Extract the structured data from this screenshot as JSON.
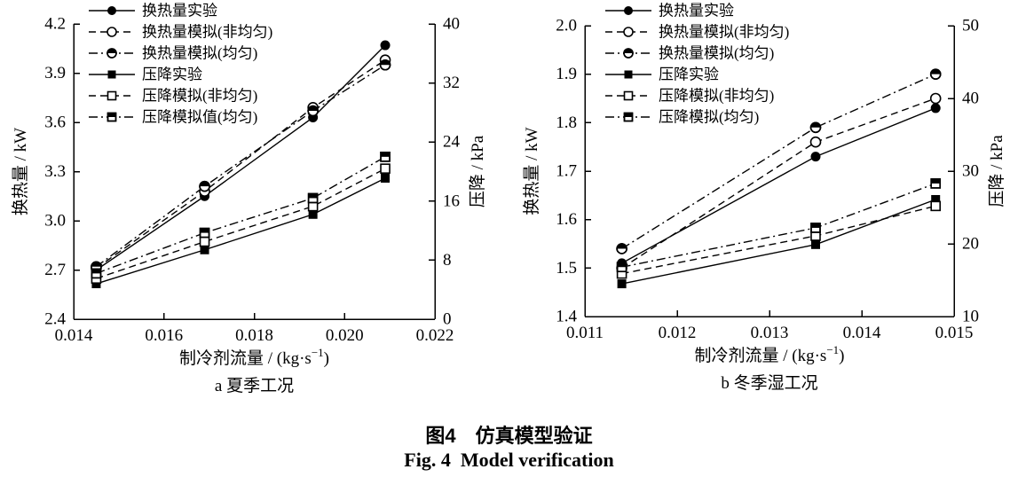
{
  "figure": {
    "caption_zh": "图4　仿真模型验证",
    "caption_en": "Fig. 4  Model verification"
  },
  "chart_data": [
    {
      "type": "line",
      "subtitle": "a 夏季工况",
      "xlabel": "制冷剂流量 / (kg·s⁻¹)",
      "grid": false,
      "legend_position": "top-left",
      "x_axis": {
        "min": 0.014,
        "max": 0.022,
        "ticks": [
          "0.014",
          "0.016",
          "0.018",
          "0.020",
          "0.022"
        ]
      },
      "y_left": {
        "label": "换热量 / kW",
        "min": 2.4,
        "max": 4.2,
        "ticks": [
          "2.4",
          "2.7",
          "3.0",
          "3.3",
          "3.6",
          "3.9",
          "4.2"
        ]
      },
      "y_right": {
        "label": "压降 / kPa",
        "min": 0,
        "max": 40,
        "ticks": [
          "0",
          "8",
          "16",
          "24",
          "32",
          "40"
        ]
      },
      "series": [
        {
          "name": "换热量实验",
          "axis": "left",
          "line": "solid",
          "marker": "circle-filled",
          "x": [
            0.0145,
            0.0169,
            0.0193,
            0.0209
          ],
          "y": [
            2.7,
            3.15,
            3.63,
            4.07
          ]
        },
        {
          "name": "换热量模拟(非均匀)",
          "axis": "left",
          "line": "dash",
          "marker": "circle-open",
          "x": [
            0.0145,
            0.0169,
            0.0193,
            0.0209
          ],
          "y": [
            2.71,
            3.18,
            3.69,
            3.98
          ]
        },
        {
          "name": "换热量模拟(均匀)",
          "axis": "left",
          "line": "dashdot",
          "marker": "circle-half",
          "x": [
            0.0145,
            0.0169,
            0.0193,
            0.0209
          ],
          "y": [
            2.72,
            3.21,
            3.67,
            3.95
          ]
        },
        {
          "name": "压降实验",
          "axis": "right",
          "line": "solid",
          "marker": "square-filled",
          "x": [
            0.0145,
            0.0169,
            0.0193,
            0.0209
          ],
          "y": [
            4.8,
            9.4,
            14.2,
            19.1
          ]
        },
        {
          "name": "压降模拟(非均匀)",
          "axis": "right",
          "line": "dash",
          "marker": "square-open",
          "x": [
            0.0145,
            0.0169,
            0.0193,
            0.0209
          ],
          "y": [
            5.5,
            10.5,
            15.3,
            20.4
          ]
        },
        {
          "name": "压降模拟值(均匀)",
          "axis": "right",
          "line": "dashdot",
          "marker": "square-half",
          "x": [
            0.0145,
            0.0169,
            0.0193,
            0.0209
          ],
          "y": [
            6.2,
            11.7,
            16.4,
            22.0
          ]
        }
      ]
    },
    {
      "type": "line",
      "subtitle": "b 冬季湿工况",
      "xlabel": "制冷剂流量 / (kg·s⁻¹)",
      "grid": false,
      "legend_position": "top-left",
      "x_axis": {
        "min": 0.011,
        "max": 0.015,
        "ticks": [
          "0.011",
          "0.012",
          "0.013",
          "0.014",
          "0.015"
        ]
      },
      "y_left": {
        "label": "换热量 / kW",
        "min": 1.4,
        "max": 2.0,
        "ticks": [
          "1.4",
          "1.5",
          "1.6",
          "1.7",
          "1.8",
          "1.9",
          "2.0"
        ]
      },
      "y_right": {
        "label": "压降 / kPa",
        "min": 10,
        "max": 50,
        "ticks": [
          "10",
          "20",
          "30",
          "40",
          "50"
        ]
      },
      "series": [
        {
          "name": "换热量实验",
          "axis": "left",
          "line": "solid",
          "marker": "circle-filled",
          "x": [
            0.0114,
            0.0135,
            0.0148
          ],
          "y": [
            1.51,
            1.73,
            1.83
          ]
        },
        {
          "name": "换热量模拟(非均匀)",
          "axis": "left",
          "line": "dash",
          "marker": "circle-open",
          "x": [
            0.0114,
            0.0135,
            0.0148
          ],
          "y": [
            1.5,
            1.76,
            1.85
          ]
        },
        {
          "name": "换热量模拟(均匀)",
          "axis": "left",
          "line": "dashdot",
          "marker": "circle-half",
          "x": [
            0.0114,
            0.0135,
            0.0148
          ],
          "y": [
            1.54,
            1.79,
            1.9
          ]
        },
        {
          "name": "压降实验",
          "axis": "right",
          "line": "solid",
          "marker": "square-filled",
          "x": [
            0.0114,
            0.0135,
            0.0148
          ],
          "y": [
            14.5,
            19.9,
            26.1
          ]
        },
        {
          "name": "压降模拟(非均匀)",
          "axis": "right",
          "line": "dash",
          "marker": "square-open",
          "x": [
            0.0114,
            0.0135,
            0.0148
          ],
          "y": [
            15.9,
            21.1,
            25.2
          ]
        },
        {
          "name": "压降模拟(均匀)",
          "axis": "right",
          "line": "dashdot",
          "marker": "square-half",
          "x": [
            0.0114,
            0.0135,
            0.0148
          ],
          "y": [
            16.8,
            22.2,
            28.3
          ]
        }
      ]
    }
  ]
}
